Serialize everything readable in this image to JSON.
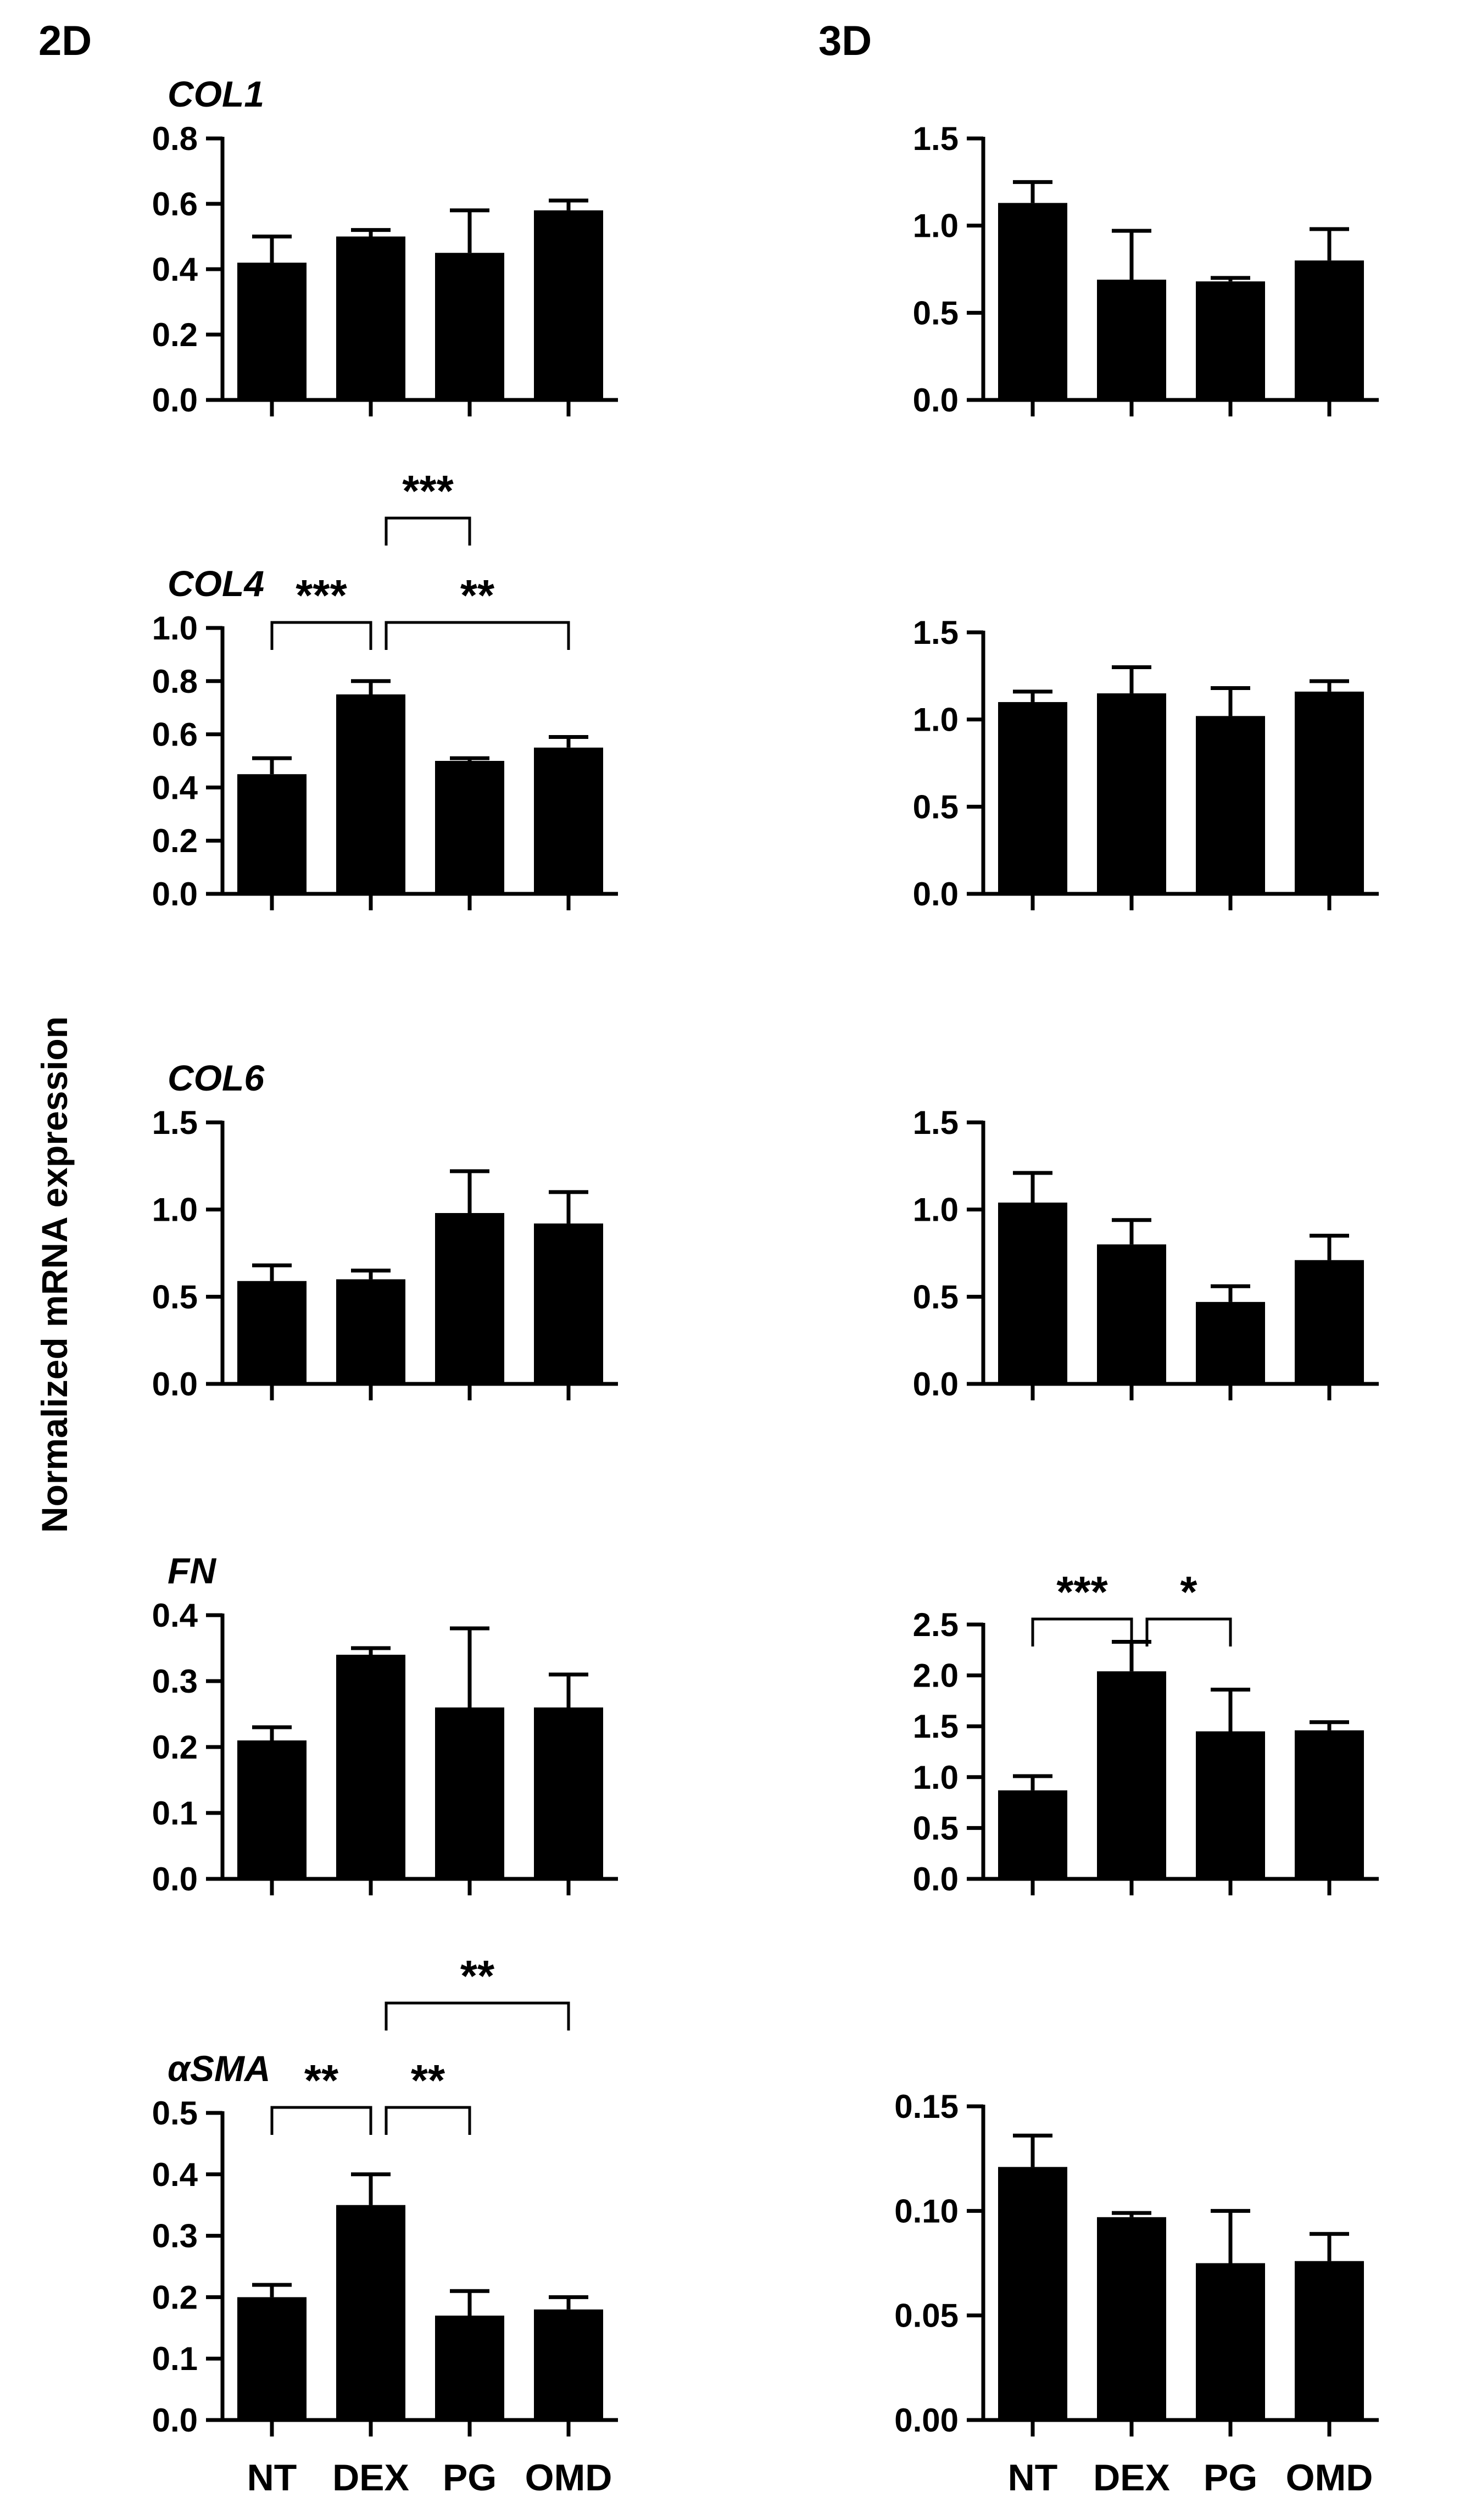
{
  "figure": {
    "column_titles": [
      "2D",
      "3D"
    ],
    "y_axis_label": "Normalized mRNA expression",
    "categories": [
      "NT",
      "DEX",
      "PG",
      "OMD"
    ]
  },
  "chart_data": [
    {
      "type": "bar",
      "panel": "2D-COL1",
      "title": "COL1",
      "categories": [
        "NT",
        "DEX",
        "PG",
        "OMD"
      ],
      "values": [
        0.42,
        0.5,
        0.45,
        0.58
      ],
      "errors": [
        0.08,
        0.02,
        0.13,
        0.03
      ],
      "ylim": [
        0,
        0.8
      ],
      "yticks": [
        0,
        0.2,
        0.4,
        0.6,
        0.8
      ],
      "tick_labels": [
        "0.0",
        "0.2",
        "0.4",
        "0.6",
        "0.8"
      ],
      "show_xlabels": false,
      "significance": []
    },
    {
      "type": "bar",
      "panel": "3D-COL1",
      "title": "",
      "categories": [
        "NT",
        "DEX",
        "PG",
        "OMD"
      ],
      "values": [
        1.13,
        0.69,
        0.68,
        0.8
      ],
      "errors": [
        0.12,
        0.28,
        0.02,
        0.18
      ],
      "ylim": [
        0,
        1.5
      ],
      "yticks": [
        0,
        0.5,
        1.0,
        1.5
      ],
      "tick_labels": [
        "0.0",
        "0.5",
        "1.0",
        "1.5"
      ],
      "show_xlabels": false,
      "significance": []
    },
    {
      "type": "bar",
      "panel": "2D-COL4",
      "title": "COL4",
      "categories": [
        "NT",
        "DEX",
        "PG",
        "OMD"
      ],
      "values": [
        0.45,
        0.75,
        0.5,
        0.55
      ],
      "errors": [
        0.06,
        0.05,
        0.01,
        0.04
      ],
      "ylim": [
        0,
        1.0
      ],
      "yticks": [
        0,
        0.2,
        0.4,
        0.6,
        0.8,
        1.0
      ],
      "tick_labels": [
        "0.0",
        "0.2",
        "0.4",
        "0.6",
        "0.8",
        "1.0"
      ],
      "show_xlabels": false,
      "significance": [
        {
          "from": 0,
          "to": 1,
          "level": 1,
          "label": "***"
        },
        {
          "from": 1,
          "to": 3,
          "level": 1,
          "label": "**"
        },
        {
          "from": 1,
          "to": 2,
          "level": 2,
          "label": "***"
        }
      ]
    },
    {
      "type": "bar",
      "panel": "3D-COL4",
      "title": "",
      "categories": [
        "NT",
        "DEX",
        "PG",
        "OMD"
      ],
      "values": [
        1.1,
        1.15,
        1.02,
        1.16
      ],
      "errors": [
        0.06,
        0.15,
        0.16,
        0.06
      ],
      "ylim": [
        0,
        1.5
      ],
      "yticks": [
        0,
        0.5,
        1.0,
        1.5
      ],
      "tick_labels": [
        "0.0",
        "0.5",
        "1.0",
        "1.5"
      ],
      "show_xlabels": false,
      "significance": []
    },
    {
      "type": "bar",
      "panel": "2D-COL6",
      "title": "COL6",
      "categories": [
        "NT",
        "DEX",
        "PG",
        "OMD"
      ],
      "values": [
        0.59,
        0.6,
        0.98,
        0.92
      ],
      "errors": [
        0.09,
        0.05,
        0.24,
        0.18
      ],
      "ylim": [
        0,
        1.5
      ],
      "yticks": [
        0,
        0.5,
        1.0,
        1.5
      ],
      "tick_labels": [
        "0.0",
        "0.5",
        "1.0",
        "1.5"
      ],
      "show_xlabels": false,
      "significance": []
    },
    {
      "type": "bar",
      "panel": "3D-COL6",
      "title": "",
      "categories": [
        "NT",
        "DEX",
        "PG",
        "OMD"
      ],
      "values": [
        1.04,
        0.8,
        0.47,
        0.71
      ],
      "errors": [
        0.17,
        0.14,
        0.09,
        0.14
      ],
      "ylim": [
        0,
        1.5
      ],
      "yticks": [
        0,
        0.5,
        1.0,
        1.5
      ],
      "tick_labels": [
        "0.0",
        "0.5",
        "1.0",
        "1.5"
      ],
      "show_xlabels": false,
      "significance": []
    },
    {
      "type": "bar",
      "panel": "2D-FN",
      "title": "FN",
      "categories": [
        "NT",
        "DEX",
        "PG",
        "OMD"
      ],
      "values": [
        0.21,
        0.34,
        0.26,
        0.26
      ],
      "errors": [
        0.02,
        0.01,
        0.12,
        0.05
      ],
      "ylim": [
        0,
        0.4
      ],
      "yticks": [
        0,
        0.1,
        0.2,
        0.3,
        0.4
      ],
      "tick_labels": [
        "0.0",
        "0.1",
        "0.2",
        "0.3",
        "0.4"
      ],
      "show_xlabels": false,
      "significance": []
    },
    {
      "type": "bar",
      "panel": "3D-FN",
      "title": "",
      "categories": [
        "NT",
        "DEX",
        "PG",
        "OMD"
      ],
      "values": [
        0.87,
        2.04,
        1.45,
        1.46
      ],
      "errors": [
        0.14,
        0.29,
        0.41,
        0.08
      ],
      "ylim": [
        0,
        2.5
      ],
      "yticks": [
        0,
        0.5,
        1.0,
        1.5,
        2.0,
        2.5
      ],
      "tick_labels": [
        "0.0",
        "0.5",
        "1.0",
        "1.5",
        "2.0",
        "2.5"
      ],
      "show_xlabels": false,
      "significance": [
        {
          "from": 0,
          "to": 1,
          "level": 1,
          "label": "***"
        },
        {
          "from": 1,
          "to": 2,
          "level": 1,
          "label": "*"
        }
      ]
    },
    {
      "type": "bar",
      "panel": "2D-aSMA",
      "title": "αSMA",
      "categories": [
        "NT",
        "DEX",
        "PG",
        "OMD"
      ],
      "values": [
        0.2,
        0.35,
        0.17,
        0.18
      ],
      "errors": [
        0.02,
        0.05,
        0.04,
        0.02
      ],
      "ylim": [
        0,
        0.5
      ],
      "yticks": [
        0,
        0.1,
        0.2,
        0.3,
        0.4,
        0.5
      ],
      "tick_labels": [
        "0.0",
        "0.1",
        "0.2",
        "0.3",
        "0.4",
        "0.5"
      ],
      "show_xlabels": true,
      "significance": [
        {
          "from": 0,
          "to": 1,
          "level": 1,
          "label": "**"
        },
        {
          "from": 1,
          "to": 2,
          "level": 1,
          "label": "**"
        },
        {
          "from": 1,
          "to": 3,
          "level": 2,
          "label": "**"
        }
      ]
    },
    {
      "type": "bar",
      "panel": "3D-aSMA",
      "title": "",
      "categories": [
        "NT",
        "DEX",
        "PG",
        "OMD"
      ],
      "values": [
        0.121,
        0.097,
        0.075,
        0.076
      ],
      "errors": [
        0.015,
        0.002,
        0.025,
        0.013
      ],
      "ylim": [
        0,
        0.15
      ],
      "yticks": [
        0,
        0.05,
        0.1,
        0.15
      ],
      "tick_labels": [
        "0.00",
        "0.05",
        "0.10",
        "0.15"
      ],
      "show_xlabels": true,
      "significance": []
    }
  ]
}
